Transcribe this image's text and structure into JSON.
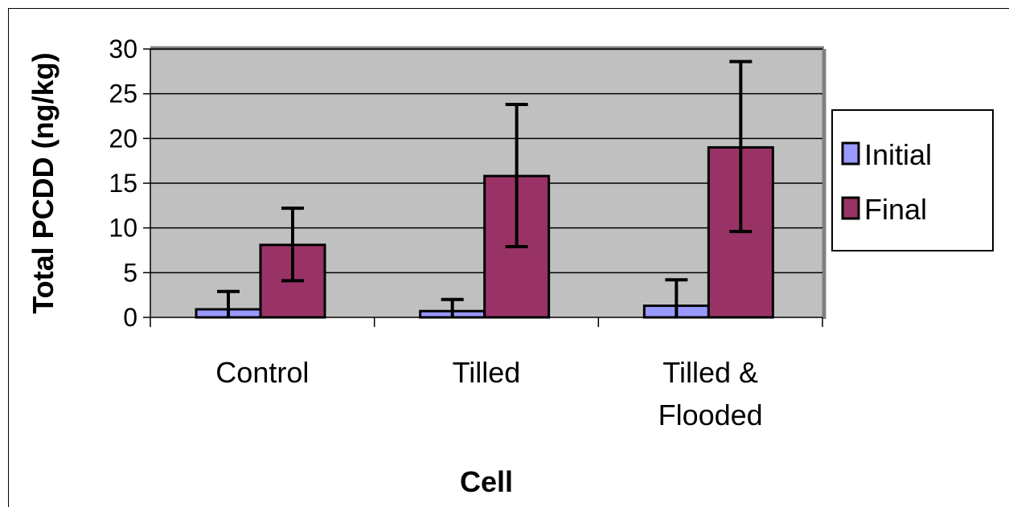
{
  "chart_data": {
    "type": "bar",
    "xlabel": "Cell",
    "ylabel": "Total PCDD (ng/kg)",
    "categories": [
      [
        "Control"
      ],
      [
        "Tilled"
      ],
      [
        "Tilled &",
        "Flooded"
      ]
    ],
    "series": [
      {
        "name": "Initial",
        "color": "#9999ff",
        "values": [
          0.9,
          0.7,
          1.3
        ],
        "err_low": [
          0.0,
          0.0,
          0.0
        ],
        "err_high": [
          2.9,
          2.0,
          4.2
        ]
      },
      {
        "name": "Final",
        "color": "#993366",
        "values": [
          8.1,
          15.8,
          19.0
        ],
        "err_low": [
          4.1,
          7.9,
          9.6
        ],
        "err_high": [
          12.2,
          23.8,
          28.6
        ]
      }
    ],
    "ylim": [
      0,
      30
    ],
    "yticks": [
      0,
      5,
      10,
      15,
      20,
      25,
      30
    ],
    "grid": true,
    "plot_background": "#c0c0c0",
    "legend_position": "right"
  }
}
